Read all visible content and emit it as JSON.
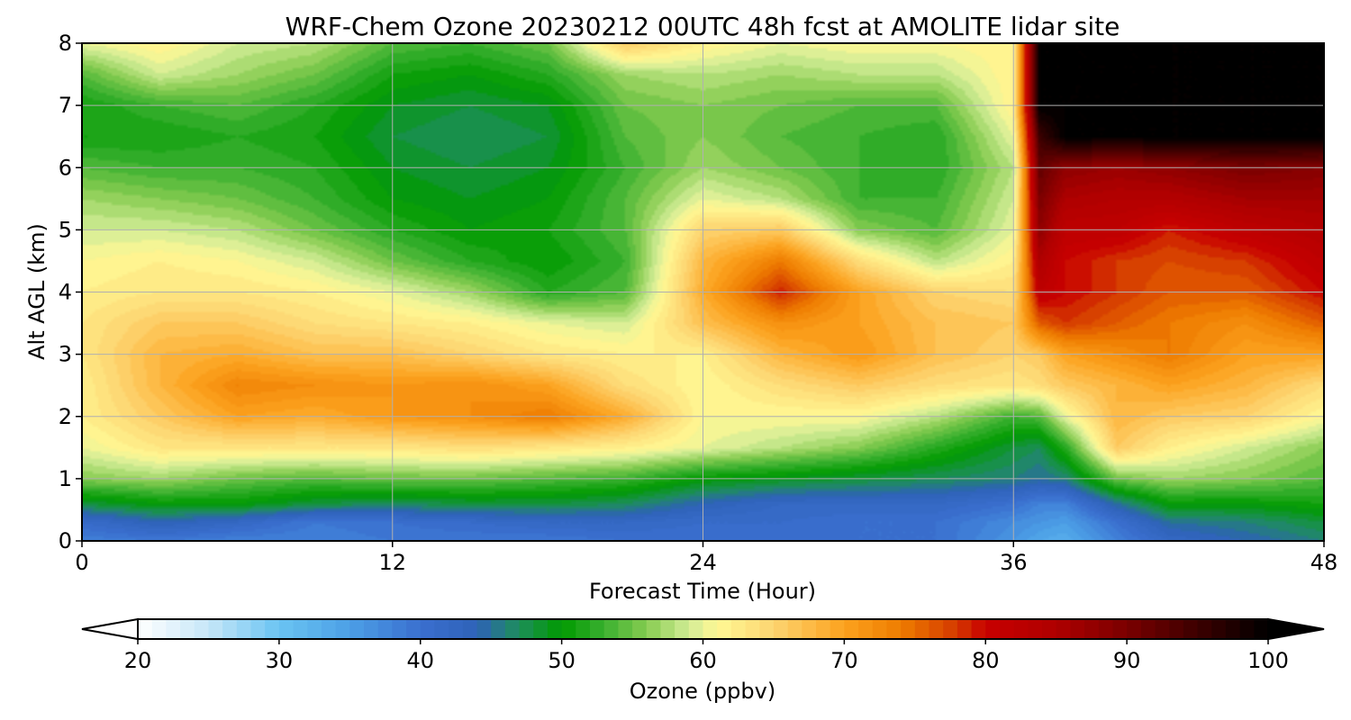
{
  "chart_data": {
    "type": "heatmap",
    "title": "WRF-Chem Ozone  20230212 00UTC 48h fcst at AMOLITE lidar site",
    "xlabel": "Forecast Time (Hour)",
    "ylabel": "Alt AGL (km)",
    "xlim": [
      0,
      48
    ],
    "ylim": [
      0,
      8
    ],
    "xticks": [
      0,
      12,
      24,
      36,
      48
    ],
    "yticks": [
      0,
      1,
      2,
      3,
      4,
      5,
      6,
      7,
      8
    ],
    "grid": true,
    "colorbar": {
      "label": "Ozone  (ppbv)",
      "range": [
        20,
        100
      ],
      "ticks": [
        20,
        30,
        40,
        50,
        60,
        70,
        80,
        90,
        100
      ],
      "extend": "both",
      "orientation": "horizontal",
      "placement": "bottom",
      "stops": [
        {
          "v": 20,
          "c": "#ffffff"
        },
        {
          "v": 25,
          "c": "#c6e6f8"
        },
        {
          "v": 30,
          "c": "#6ac4f2"
        },
        {
          "v": 35,
          "c": "#4c9fe6"
        },
        {
          "v": 40,
          "c": "#3a6fcf"
        },
        {
          "v": 44,
          "c": "#2e62b8"
        },
        {
          "v": 47,
          "c": "#1d8e5a"
        },
        {
          "v": 50,
          "c": "#009a00"
        },
        {
          "v": 53,
          "c": "#3ab030"
        },
        {
          "v": 56,
          "c": "#86cc50"
        },
        {
          "v": 59,
          "c": "#d2ec96"
        },
        {
          "v": 61,
          "c": "#fff895"
        },
        {
          "v": 65,
          "c": "#fdd470"
        },
        {
          "v": 70,
          "c": "#fca21e"
        },
        {
          "v": 74,
          "c": "#ee7c00"
        },
        {
          "v": 78,
          "c": "#d43800"
        },
        {
          "v": 80,
          "c": "#c80000"
        },
        {
          "v": 85,
          "c": "#ae0000"
        },
        {
          "v": 90,
          "c": "#7a0000"
        },
        {
          "v": 95,
          "c": "#3c0000"
        },
        {
          "v": 100,
          "c": "#000000"
        }
      ]
    },
    "x": [
      0,
      3,
      6,
      9,
      12,
      15,
      18,
      21,
      24,
      27,
      30,
      33,
      36,
      37,
      38,
      40,
      42,
      45,
      48
    ],
    "y": [
      0,
      0.3,
      0.6,
      1.0,
      1.5,
      2.0,
      2.5,
      3.0,
      3.5,
      4.0,
      4.5,
      5.0,
      5.5,
      6.0,
      6.5,
      7.0,
      7.5,
      8.0
    ],
    "z": [
      [
        38,
        39,
        38,
        38,
        39,
        39,
        39,
        40,
        40,
        40,
        40,
        40,
        36,
        34,
        33,
        38,
        42,
        44,
        46
      ],
      [
        41,
        44,
        42,
        39,
        40,
        41,
        42,
        42,
        41,
        41,
        40,
        40,
        37,
        36,
        35,
        40,
        45,
        46,
        48
      ],
      [
        48,
        50,
        50,
        48,
        47,
        48,
        48,
        47,
        44,
        42,
        42,
        42,
        40,
        38,
        38,
        45,
        50,
        50,
        51
      ],
      [
        56,
        57,
        55,
        54,
        55,
        55,
        54,
        53,
        50,
        49,
        48,
        47,
        46,
        45,
        46,
        55,
        57,
        56,
        54
      ],
      [
        60,
        63,
        63,
        63,
        63,
        64,
        63,
        62,
        60,
        58,
        56,
        52,
        48,
        47,
        52,
        66,
        62,
        59,
        56
      ],
      [
        62,
        66,
        70,
        69,
        71,
        72,
        74,
        69,
        61,
        61,
        61,
        58,
        53,
        54,
        60,
        68,
        66,
        65,
        61
      ],
      [
        62,
        68,
        73,
        72,
        71,
        72,
        70,
        64,
        61,
        64,
        66,
        64,
        63,
        64,
        66,
        68,
        70,
        68,
        64
      ],
      [
        63,
        68,
        69,
        67,
        67,
        65,
        63,
        62,
        62,
        68,
        71,
        67,
        65,
        66,
        70,
        72,
        74,
        70,
        70
      ],
      [
        63,
        66,
        66,
        64,
        63,
        62,
        60,
        59,
        67,
        72,
        70,
        67,
        66,
        76,
        78,
        76,
        74,
        72,
        76
      ],
      [
        62,
        63,
        63,
        62,
        60,
        57,
        52,
        54,
        69,
        79,
        70,
        65,
        64,
        82,
        80,
        78,
        76,
        76,
        80
      ],
      [
        61,
        62,
        61,
        59,
        55,
        52,
        50,
        53,
        68,
        74,
        64,
        58,
        62,
        85,
        80,
        78,
        77,
        78,
        82
      ],
      [
        59,
        59,
        58,
        55,
        52,
        50,
        51,
        54,
        65,
        66,
        56,
        54,
        60,
        88,
        82,
        82,
        79,
        82,
        84
      ],
      [
        57,
        56,
        55,
        53,
        50,
        49,
        50,
        54,
        60,
        58,
        53,
        53,
        59,
        90,
        85,
        84,
        84,
        86,
        86
      ],
      [
        54,
        53,
        53,
        52,
        49,
        48,
        49,
        53,
        57,
        55,
        53,
        52,
        58,
        92,
        88,
        87,
        88,
        90,
        89
      ],
      [
        51,
        51,
        52,
        51,
        48,
        47,
        48,
        54,
        56,
        54,
        53,
        52,
        60,
        95,
        100,
        100,
        100,
        100,
        100
      ],
      [
        51,
        53,
        54,
        52,
        49,
        48,
        49,
        55,
        56,
        55,
        54,
        54,
        62,
        100,
        100,
        100,
        100,
        100,
        100
      ],
      [
        54,
        59,
        57,
        55,
        51,
        50,
        52,
        57,
        58,
        57,
        58,
        58,
        62,
        100,
        100,
        100,
        100,
        100,
        100
      ],
      [
        60,
        62,
        59,
        58,
        54,
        53,
        55,
        66,
        62,
        60,
        61,
        61,
        62,
        100,
        100,
        100,
        100,
        100,
        100
      ]
    ]
  }
}
